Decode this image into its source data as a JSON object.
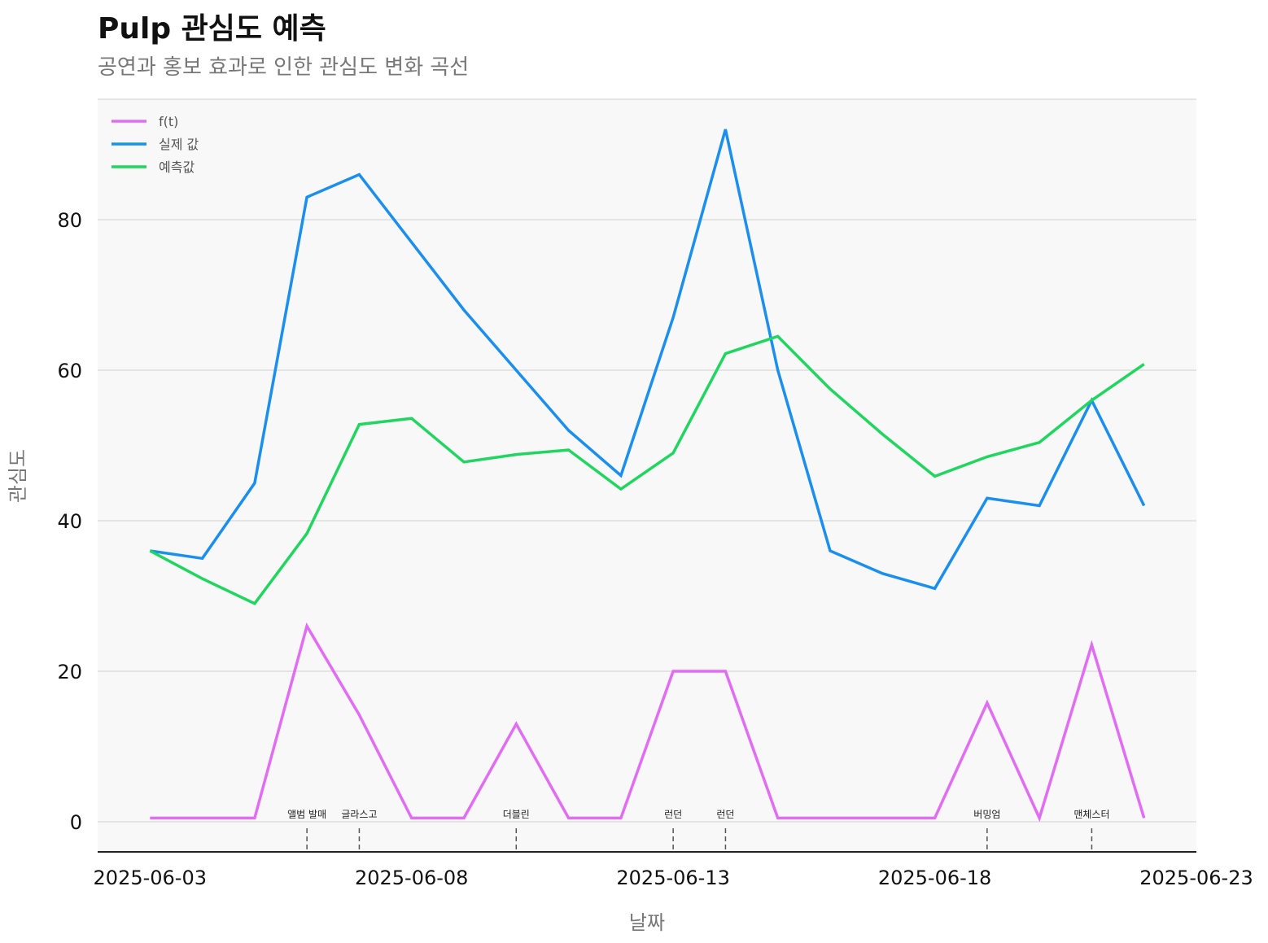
{
  "chart_data": {
    "type": "line",
    "title": "Pulp 관심도 예측",
    "subtitle": "공연과 홍보 효과로 인한 관심도 변화 곡선",
    "xlabel": "날짜",
    "ylabel": "관심도",
    "x": [
      "2025-06-03",
      "2025-06-04",
      "2025-06-05",
      "2025-06-06",
      "2025-06-07",
      "2025-06-08",
      "2025-06-09",
      "2025-06-10",
      "2025-06-11",
      "2025-06-12",
      "2025-06-13",
      "2025-06-14",
      "2025-06-15",
      "2025-06-16",
      "2025-06-17",
      "2025-06-18",
      "2025-06-19",
      "2025-06-20",
      "2025-06-21",
      "2025-06-22"
    ],
    "xticks": [
      "2025-06-03",
      "2025-06-08",
      "2025-06-13",
      "2025-06-18",
      "2025-06-23"
    ],
    "xlim": [
      "2025-06-02",
      "2025-06-23"
    ],
    "ylim": [
      -4,
      96
    ],
    "yticks": [
      0,
      20,
      40,
      60,
      80
    ],
    "grid": "horizontal",
    "legend_position": "top-left",
    "series": [
      {
        "name": "f(t)",
        "color": "#e36cf5",
        "values": [
          0.5,
          0.5,
          0.5,
          26,
          14.2,
          0.5,
          0.5,
          13,
          0.5,
          0.5,
          20,
          20,
          0.5,
          0.5,
          0.5,
          0.5,
          15.8,
          0.5,
          23.5,
          0.5
        ]
      },
      {
        "name": "실제 값",
        "color": "#1a8ff0",
        "values": [
          36,
          35,
          45,
          83,
          86,
          77,
          68,
          60,
          52,
          46,
          67,
          92,
          60,
          36,
          33,
          31,
          43,
          42,
          56,
          42
        ]
      },
      {
        "name": "예측값",
        "color": "#1fd65f",
        "values": [
          36,
          32.3,
          29,
          38.3,
          52.8,
          53.6,
          47.8,
          48.8,
          49.4,
          44.2,
          49,
          62.2,
          64.5,
          57.5,
          51.5,
          45.9,
          48.5,
          50.4,
          56,
          60.8
        ]
      }
    ],
    "events": [
      {
        "date": "2025-06-06",
        "label": "앨범 발매"
      },
      {
        "date": "2025-06-07",
        "label": "글라스고"
      },
      {
        "date": "2025-06-10",
        "label": "더블린"
      },
      {
        "date": "2025-06-13",
        "label": "런던"
      },
      {
        "date": "2025-06-14",
        "label": "런던"
      },
      {
        "date": "2025-06-19",
        "label": "버밍엄"
      },
      {
        "date": "2025-06-21",
        "label": "맨체스터"
      }
    ],
    "colors": {
      "plot_background": "#f8f8f8",
      "grid": "#dddddd",
      "axis": "#222222",
      "tick_label": "#111111",
      "axis_label": "#777777",
      "legend_text": "#555555",
      "event_line": "#555555"
    }
  }
}
